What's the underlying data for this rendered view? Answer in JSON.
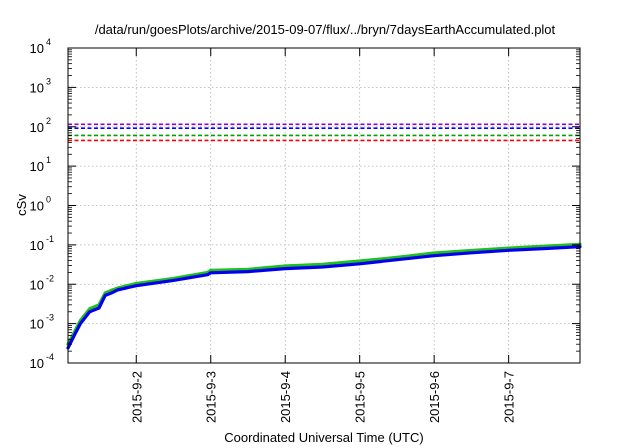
{
  "chart_data": {
    "type": "line",
    "title": "/data/run/goesPlots/archive/2015-09-07/flux/../bryn/7daysEarthAccumulated.plot",
    "xlabel": "Coordinated Universal Time (UTC)",
    "ylabel": "cSv",
    "yscale": "log",
    "ylim": [
      0.0001,
      10000
    ],
    "xlim": [
      "2015-09-01T02:00",
      "2015-09-07T23:00"
    ],
    "grid": true,
    "x_ticks": [
      "2015-09-02",
      "2015-09-03",
      "2015-09-04",
      "2015-09-05",
      "2015-09-06",
      "2015-09-07"
    ],
    "x_tick_labels": [
      "2015-9-2",
      "2015-9-3",
      "2015-9-4",
      "2015-9-5",
      "2015-9-6",
      "2015-9-7"
    ],
    "y_ticks": [
      {
        "base": "10",
        "exp": "-4",
        "value": 0.0001
      },
      {
        "base": "10",
        "exp": "-3",
        "value": 0.001
      },
      {
        "base": "10",
        "exp": "-2",
        "value": 0.01
      },
      {
        "base": "10",
        "exp": "-1",
        "value": 0.1
      },
      {
        "base": "10",
        "exp": "0",
        "value": 1
      },
      {
        "base": "10",
        "exp": "1",
        "value": 10
      },
      {
        "base": "10",
        "exp": "2",
        "value": 100
      },
      {
        "base": "10",
        "exp": "3",
        "value": 1000
      },
      {
        "base": "10",
        "exp": "4",
        "value": 10000
      }
    ],
    "thresholds": [
      {
        "value": 115,
        "color": "#9400d3",
        "style": "dashed"
      },
      {
        "value": 92,
        "color": "#0000ff",
        "style": "dashed"
      },
      {
        "value": 60,
        "color": "#00a000",
        "style": "dashed"
      },
      {
        "value": 45,
        "color": "#ff0000",
        "style": "dashed"
      }
    ],
    "series": [
      {
        "color": "#20c020",
        "points": [
          [
            "2015-09-01T02:00",
            0.0003
          ],
          [
            "2015-09-01T04:00",
            0.0006
          ],
          [
            "2015-09-01T06:00",
            0.0012
          ],
          [
            "2015-09-01T09:00",
            0.0024
          ],
          [
            "2015-09-01T12:00",
            0.003
          ],
          [
            "2015-09-01T14:00",
            0.006
          ],
          [
            "2015-09-01T16:00",
            0.007
          ],
          [
            "2015-09-01T18:00",
            0.008
          ],
          [
            "2015-09-02T00:00",
            0.0105
          ],
          [
            "2015-09-02T12:00",
            0.014
          ],
          [
            "2015-09-02T23:00",
            0.02
          ],
          [
            "2015-09-03T00:00",
            0.0225
          ],
          [
            "2015-09-03T12:00",
            0.024
          ],
          [
            "2015-09-04T00:00",
            0.029
          ],
          [
            "2015-09-04T12:00",
            0.032
          ],
          [
            "2015-09-05T00:00",
            0.039
          ],
          [
            "2015-09-05T12:00",
            0.048
          ],
          [
            "2015-09-06T00:00",
            0.062
          ],
          [
            "2015-09-06T12:00",
            0.072
          ],
          [
            "2015-09-07T00:00",
            0.083
          ],
          [
            "2015-09-07T12:00",
            0.093
          ],
          [
            "2015-09-07T23:00",
            0.103
          ]
        ]
      },
      {
        "color": "#0000ee",
        "points": [
          [
            "2015-09-01T02:00",
            0.00024
          ],
          [
            "2015-09-01T04:00",
            0.0005
          ],
          [
            "2015-09-01T06:00",
            0.001
          ],
          [
            "2015-09-01T09:00",
            0.002
          ],
          [
            "2015-09-01T12:00",
            0.0025
          ],
          [
            "2015-09-01T14:00",
            0.0052
          ],
          [
            "2015-09-01T16:00",
            0.006
          ],
          [
            "2015-09-01T18:00",
            0.0072
          ],
          [
            "2015-09-02T00:00",
            0.0092
          ],
          [
            "2015-09-02T12:00",
            0.0125
          ],
          [
            "2015-09-02T23:00",
            0.0175
          ],
          [
            "2015-09-03T00:00",
            0.0195
          ],
          [
            "2015-09-03T12:00",
            0.021
          ],
          [
            "2015-09-04T00:00",
            0.025
          ],
          [
            "2015-09-04T12:00",
            0.0275
          ],
          [
            "2015-09-05T00:00",
            0.033
          ],
          [
            "2015-09-05T12:00",
            0.042
          ],
          [
            "2015-09-06T00:00",
            0.053
          ],
          [
            "2015-09-06T12:00",
            0.063
          ],
          [
            "2015-09-07T00:00",
            0.073
          ],
          [
            "2015-09-07T12:00",
            0.081
          ],
          [
            "2015-09-07T23:00",
            0.09
          ]
        ]
      }
    ]
  }
}
